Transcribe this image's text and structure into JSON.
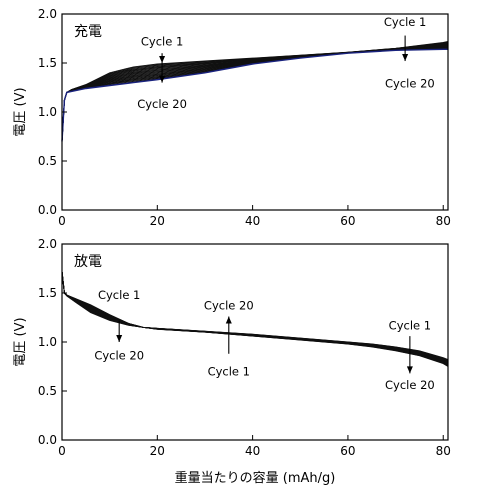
{
  "chart_data": [
    {
      "type": "line",
      "panel_label": "充電",
      "ylabel": "電圧 (V)",
      "xlim": [
        0,
        81
      ],
      "ylim": [
        0,
        2.0
      ],
      "xticks": [
        0,
        20,
        40,
        60,
        80
      ],
      "xtick_labels": [
        "0",
        "20",
        "40",
        "60",
        "80"
      ],
      "yticks": [
        0,
        0.5,
        1.0,
        1.5,
        2.0
      ],
      "ytick_labels": [
        "0.0",
        "0.5",
        "1.0",
        "1.5",
        "2.0"
      ],
      "cycles": 20,
      "cycle_first": {
        "x": [
          0,
          0.5,
          1,
          2,
          5,
          10,
          15,
          20,
          30,
          40,
          50,
          60,
          70,
          80,
          81
        ],
        "y": [
          0.7,
          1.12,
          1.2,
          1.23,
          1.28,
          1.4,
          1.46,
          1.49,
          1.52,
          1.55,
          1.58,
          1.61,
          1.65,
          1.71,
          1.72
        ]
      },
      "cycle_last": {
        "x": [
          0,
          0.5,
          1,
          2,
          5,
          10,
          15,
          20,
          30,
          40,
          50,
          60,
          70,
          80,
          81
        ],
        "y": [
          0.7,
          1.12,
          1.2,
          1.21,
          1.24,
          1.27,
          1.3,
          1.33,
          1.4,
          1.49,
          1.55,
          1.6,
          1.63,
          1.64,
          1.64
        ]
      },
      "annotations": [
        {
          "text": "Cycle 1",
          "x": 21,
          "y": 1.72,
          "arrow_to": 1.5
        },
        {
          "text": "Cycle 20",
          "x": 21,
          "y": 1.08,
          "arrow_from": 1.5,
          "arrow_to": 1.3
        },
        {
          "text": "Cycle 1",
          "x": 72,
          "y": 1.92,
          "arrow_from": 1.78,
          "arrow_to": 1.52
        },
        {
          "text": "Cycle 20",
          "x": 73,
          "y": 1.29
        }
      ]
    },
    {
      "type": "line",
      "panel_label": "放電",
      "ylabel": "電圧 (V)",
      "xlabel": "重量当たりの容量 (mAh/g)",
      "xlim": [
        0,
        81
      ],
      "ylim": [
        0,
        2.0
      ],
      "xticks": [
        0,
        20,
        40,
        60,
        80
      ],
      "xtick_labels": [
        "0",
        "20",
        "40",
        "60",
        "80"
      ],
      "yticks": [
        0,
        0.5,
        1.0,
        1.5,
        2.0
      ],
      "ytick_labels": [
        "0.0",
        "0.5",
        "1.0",
        "1.5",
        "2.0"
      ],
      "cycles": 20,
      "cycle_first": {
        "x": [
          0,
          0.5,
          1,
          3,
          6,
          10,
          14,
          17,
          20,
          30,
          40,
          50,
          60,
          65,
          70,
          75,
          80,
          81
        ],
        "y": [
          1.72,
          1.5,
          1.48,
          1.44,
          1.38,
          1.28,
          1.19,
          1.15,
          1.13,
          1.1,
          1.06,
          1.02,
          0.98,
          0.95,
          0.91,
          0.86,
          0.78,
          0.75
        ]
      },
      "cycle_last": {
        "x": [
          0,
          0.5,
          1,
          3,
          6,
          10,
          14,
          17,
          20,
          30,
          40,
          50,
          60,
          65,
          70,
          75,
          80,
          81
        ],
        "y": [
          1.72,
          1.5,
          1.47,
          1.4,
          1.3,
          1.22,
          1.17,
          1.15,
          1.14,
          1.11,
          1.08,
          1.04,
          1.0,
          0.98,
          0.95,
          0.91,
          0.84,
          0.82
        ]
      },
      "annotations": [
        {
          "text": "Cycle 1",
          "x": 12,
          "y": 1.48
        },
        {
          "text": "Cycle 20",
          "x": 12,
          "y": 0.86,
          "arrow_from": 1.22,
          "arrow_to": 1.0
        },
        {
          "text": "Cycle 20",
          "x": 35,
          "y": 1.37,
          "arrow_from": 0.88,
          "arrow_to": 1.26
        },
        {
          "text": "Cycle 1",
          "x": 35,
          "y": 0.7
        },
        {
          "text": "Cycle 1",
          "x": 73,
          "y": 1.17
        },
        {
          "text": "Cycle 20",
          "x": 73,
          "y": 0.56,
          "arrow_from": 1.06,
          "arrow_to": 0.68
        }
      ]
    }
  ]
}
